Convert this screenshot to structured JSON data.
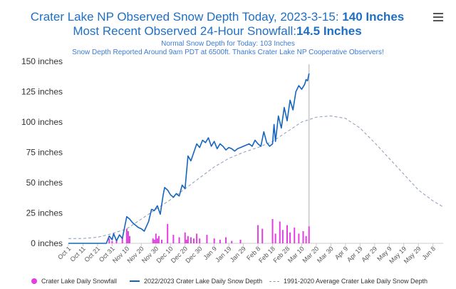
{
  "header": {
    "title_prefix": "Crater Lake NP Observed Snow Depth Today, 2023-3-15: ",
    "title_value": "140 Inches",
    "subtitle_prefix": "Most Recent Observed 24-Hour Snowfall:",
    "subtitle_value": "14.5 Inches",
    "note_1": "Normal Snow Depth for Today: 103 Inches",
    "note_2": "Snow Depth Reported Around 9am PDT at 6500ft. Thanks Crater Lake NP Cooperative Observers!"
  },
  "menu_icon": "hamburger-menu-icon",
  "colors": {
    "depth": "#1565c0",
    "normal": "#8a9ab8",
    "snowfall": "#e040e0",
    "today_line": "#bbbbbb",
    "title": "#1f6fc5"
  },
  "chart_data": {
    "type": "line",
    "y_unit": "inches",
    "y_ticks": [
      "0 inches",
      "25 inches",
      "50 inches",
      "75 inches",
      "100 inches",
      "125 inches",
      "150 inches"
    ],
    "ylim": [
      0,
      150
    ],
    "x_ticks": [
      "Oct 1",
      "Oct 11",
      "Oct 21",
      "Oct 31",
      "Nov 10",
      "Nov 20",
      "Nov 30",
      "Dec 10",
      "Dec 20",
      "Dec 30",
      "Jan 9",
      "Jan 19",
      "Jan 29",
      "Feb 8",
      "Feb 18",
      "Feb 28",
      "Mar 10",
      "Mar 20",
      "Mar 30",
      "Apr 9",
      "Apr 19",
      "Apr 29",
      "May 9",
      "May 19",
      "May 29",
      "Jun 8"
    ],
    "x_tick_day_offsets": [
      0,
      10,
      20,
      30,
      40,
      50,
      60,
      70,
      80,
      90,
      100,
      110,
      120,
      130,
      140,
      150,
      160,
      170,
      180,
      190,
      200,
      210,
      220,
      230,
      240,
      250
    ],
    "today_day_offset": 165,
    "series": [
      {
        "name": "2022/2023 Crater Lake Daily Snow Depth",
        "style": "line",
        "x": [
          0,
          26,
          28,
          30,
          31,
          33,
          35,
          37,
          38,
          40,
          42,
          44,
          46,
          48,
          50,
          52,
          55,
          57,
          59,
          61,
          63,
          65,
          66,
          67,
          68,
          70,
          72,
          74,
          76,
          78,
          80,
          82,
          84,
          86,
          88,
          90,
          92,
          94,
          96,
          98,
          100,
          102,
          104,
          106,
          108,
          110,
          112,
          114,
          116,
          118,
          120,
          122,
          124,
          126,
          128,
          130,
          132,
          134,
          136,
          138,
          140,
          141,
          142,
          144,
          146,
          148,
          150,
          152,
          154,
          156,
          158,
          160,
          162,
          163,
          164,
          165
        ],
        "y": [
          0,
          0,
          6,
          3,
          8,
          2,
          7,
          4,
          10,
          22,
          20,
          17,
          15,
          13,
          12,
          10,
          18,
          28,
          27,
          31,
          24,
          40,
          46,
          45,
          44,
          40,
          38,
          41,
          39,
          48,
          45,
          72,
          68,
          75,
          82,
          79,
          85,
          83,
          87,
          80,
          84,
          78,
          82,
          80,
          77,
          79,
          78,
          76,
          78,
          79,
          80,
          81,
          82,
          80,
          85,
          82,
          80,
          92,
          83,
          80,
          82,
          98,
          84,
          105,
          95,
          112,
          101,
          118,
          110,
          125,
          130,
          127,
          131,
          135,
          134,
          140
        ]
      },
      {
        "name": "1991-2020 Average Crater Lake Daily Snow Depth",
        "style": "dashed",
        "x": [
          0,
          10,
          20,
          30,
          40,
          50,
          60,
          70,
          80,
          90,
          100,
          110,
          120,
          130,
          140,
          150,
          160,
          170,
          180,
          190,
          200,
          210,
          220,
          230,
          240,
          250,
          257
        ],
        "y": [
          4,
          4,
          5,
          8,
          12,
          20,
          28,
          36,
          45,
          54,
          63,
          70,
          75,
          79,
          84,
          92,
          100,
          104,
          105,
          103,
          95,
          83,
          70,
          57,
          44,
          35,
          30
        ]
      },
      {
        "name": "Crater Lake Daily Snowfall",
        "style": "bar",
        "x": [
          28,
          30,
          33,
          37,
          40,
          41,
          42,
          58,
          59,
          60,
          61,
          62,
          64,
          68,
          72,
          76,
          80,
          81,
          82,
          84,
          86,
          88,
          90,
          95,
          100,
          104,
          108,
          112,
          118,
          130,
          133,
          140,
          142,
          145,
          147,
          150,
          152,
          155,
          158,
          161,
          163,
          165
        ],
        "y": [
          4,
          2,
          3,
          5,
          12,
          10,
          6,
          4,
          3,
          8,
          4,
          6,
          3,
          16,
          7,
          5,
          9,
          3,
          6,
          5,
          4,
          8,
          4,
          7,
          4,
          3,
          5,
          2,
          3,
          15,
          12,
          20,
          8,
          18,
          11,
          15,
          9,
          13,
          8,
          10,
          6,
          14
        ]
      }
    ],
    "legend_position": "bottom",
    "grid": false
  }
}
